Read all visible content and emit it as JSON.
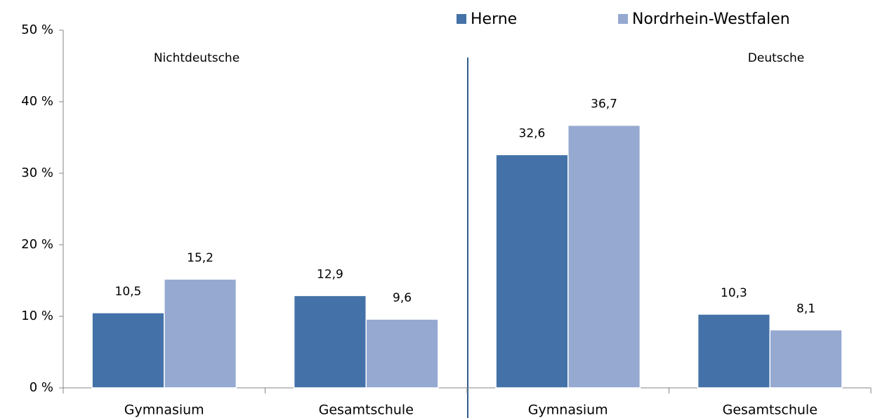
{
  "chart_data": {
    "type": "bar",
    "categories": [
      "Gymnasium",
      "Gesamtschule",
      "Gymnasium",
      "Gesamtschule"
    ],
    "groups": [
      "Nichtdeutsche",
      "Deutsche"
    ],
    "series": [
      {
        "name": "Herne",
        "color": "#4472a8",
        "values": [
          10.5,
          12.9,
          32.6,
          10.3
        ],
        "value_labels": [
          "10,5",
          "12,9",
          "32,6",
          "10,3"
        ]
      },
      {
        "name": "Nordrhein-Westfalen",
        "color": "#95a9d1",
        "values": [
          15.2,
          9.6,
          36.7,
          8.1
        ],
        "value_labels": [
          "15,2",
          "9,6",
          "36,7",
          "8,1"
        ]
      }
    ],
    "ylim": [
      0,
      50
    ],
    "yticks": [
      {
        "value": 0,
        "label": "0 %"
      },
      {
        "value": 10,
        "label": "10 %"
      },
      {
        "value": 20,
        "label": "20 %"
      },
      {
        "value": 30,
        "label": "30 %"
      },
      {
        "value": 40,
        "label": "40 %"
      },
      {
        "value": 50,
        "label": "50 %"
      }
    ],
    "legend": "top-right"
  }
}
